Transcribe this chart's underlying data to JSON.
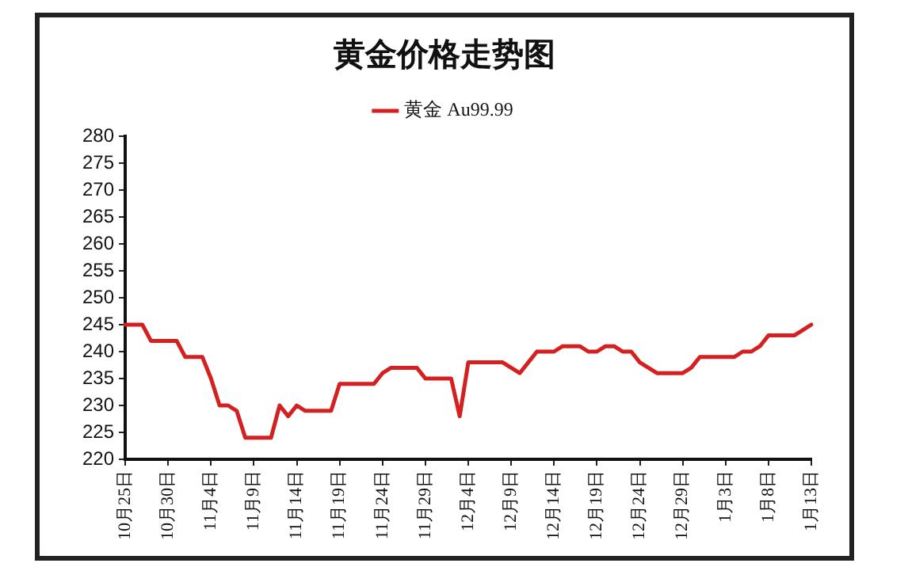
{
  "chart_data": {
    "type": "line",
    "title": "黄金价格走势图",
    "categories": [
      "10月25日",
      null,
      null,
      null,
      null,
      "10月30日",
      null,
      null,
      null,
      null,
      "11月4日",
      null,
      null,
      null,
      null,
      "11月9日",
      null,
      null,
      null,
      null,
      "11月14日",
      null,
      null,
      null,
      null,
      "11月19日",
      null,
      null,
      null,
      null,
      "11月24日",
      null,
      null,
      null,
      null,
      "11月29日",
      null,
      null,
      null,
      null,
      "12月4日",
      null,
      null,
      null,
      null,
      "12月9日",
      null,
      null,
      null,
      null,
      "12月14日",
      null,
      null,
      null,
      null,
      "12月19日",
      null,
      null,
      null,
      null,
      "12月24日",
      null,
      null,
      null,
      null,
      "12月29日",
      null,
      null,
      null,
      null,
      "1月3日",
      null,
      null,
      null,
      null,
      "1月8日",
      null,
      null,
      null,
      null,
      "1月13日"
    ],
    "series": [
      {
        "name": "黄金 Au99.99",
        "color": "#d42020",
        "values": [
          245,
          245,
          245,
          242,
          242,
          242,
          242,
          239,
          239,
          239,
          235,
          230,
          230,
          229,
          224,
          224,
          224,
          224,
          230,
          228,
          230,
          229,
          229,
          229,
          229,
          234,
          234,
          234,
          234,
          234,
          236,
          237,
          237,
          237,
          237,
          235,
          235,
          235,
          235,
          228,
          238,
          238,
          238,
          238,
          238,
          237,
          236,
          238,
          240,
          240,
          240,
          241,
          241,
          241,
          240,
          240,
          241,
          241,
          240,
          240,
          238,
          237,
          236,
          236,
          236,
          236,
          237,
          239,
          239,
          239,
          239,
          239,
          240,
          240,
          241,
          243,
          243,
          243,
          243,
          244,
          245
        ]
      }
    ],
    "ylim": [
      220,
      280
    ],
    "yticks": [
      220,
      225,
      230,
      235,
      240,
      245,
      250,
      255,
      260,
      265,
      270,
      275,
      280
    ],
    "grid": false,
    "legend": "top",
    "marker": "none",
    "line_style": "solid"
  }
}
